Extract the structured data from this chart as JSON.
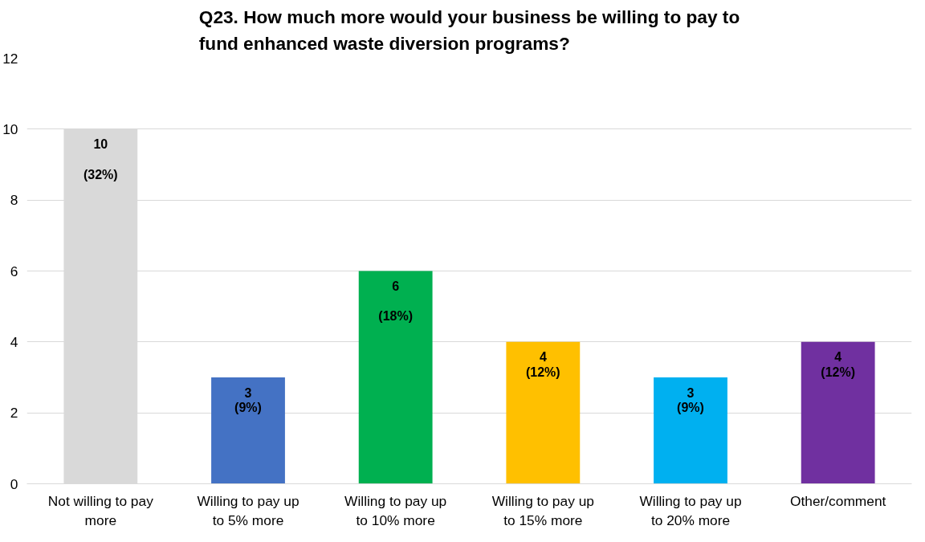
{
  "chart_data": {
    "type": "bar",
    "title": "Q23. How much more would your business be willing to pay to fund enhanced waste diversion programs?",
    "categories": [
      "Not willing to pay more",
      "Willing to pay up to 5% more",
      "Willing to pay up to 10% more",
      "Willing to pay up to 15% more",
      "Willing to pay up to 20% more",
      "Other/comment"
    ],
    "values": [
      10,
      3,
      6,
      4,
      3,
      4
    ],
    "colors": [
      "#d9d9d9",
      "#4472c4",
      "#00b050",
      "#ffc000",
      "#00b0f0",
      "#7030a0"
    ],
    "value_labels": [
      "10\n(32%)",
      "3\n(9%)",
      "6\n(18%)",
      "4\n(12%)",
      "3\n(9%)",
      "4\n(12%)"
    ],
    "ylim": [
      0,
      12
    ],
    "yticks": [
      0,
      2,
      4,
      6,
      8,
      10,
      12
    ],
    "grid": "y"
  }
}
